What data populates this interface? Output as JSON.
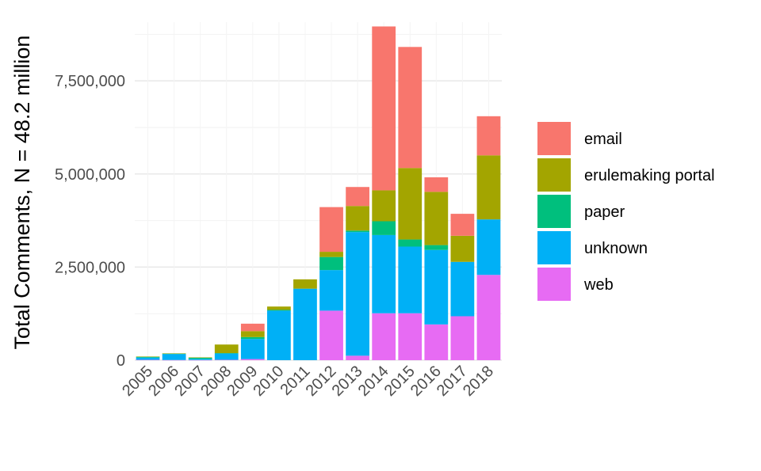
{
  "chart_data": {
    "type": "bar",
    "stacked": true,
    "title": "",
    "xlabel": "",
    "ylabel": "Total Comments, N = 48.2 million",
    "ylim": [
      0,
      9000000
    ],
    "y_ticks": [
      0,
      2500000,
      5000000,
      7500000
    ],
    "y_tick_labels": [
      "0",
      "2,500,000",
      "5,000,000",
      "7,500,000"
    ],
    "grid": true,
    "legend_position": "right",
    "categories": [
      "2005",
      "2006",
      "2007",
      "2008",
      "2009",
      "2010",
      "2011",
      "2012",
      "2013",
      "2014",
      "2015",
      "2016",
      "2017",
      "2018"
    ],
    "series": [
      {
        "name": "web",
        "color": "#E76BF3",
        "values": [
          10000,
          5000,
          5000,
          10000,
          30000,
          0,
          0,
          1330000,
          120000,
          1260000,
          1260000,
          960000,
          1180000,
          2290000
        ]
      },
      {
        "name": "unknown",
        "color": "#00B0F6",
        "values": [
          60000,
          160000,
          30000,
          170000,
          540000,
          1330000,
          1920000,
          1090000,
          3320000,
          2100000,
          1790000,
          2000000,
          1460000,
          1490000
        ]
      },
      {
        "name": "paper",
        "color": "#00BF7D",
        "values": [
          20000,
          10000,
          30000,
          10000,
          50000,
          20000,
          0,
          350000,
          40000,
          370000,
          190000,
          130000,
          0,
          0
        ]
      },
      {
        "name": "erulemaking portal",
        "color": "#A3A500",
        "values": [
          10000,
          10000,
          10000,
          230000,
          160000,
          90000,
          250000,
          140000,
          660000,
          830000,
          1920000,
          1430000,
          700000,
          1720000
        ]
      },
      {
        "name": "email",
        "color": "#F8766D",
        "values": [
          0,
          0,
          0,
          0,
          200000,
          0,
          0,
          1200000,
          510000,
          4400000,
          3250000,
          390000,
          590000,
          1050000
        ]
      }
    ],
    "legend_order": [
      "email",
      "erulemaking portal",
      "paper",
      "unknown",
      "web"
    ]
  }
}
